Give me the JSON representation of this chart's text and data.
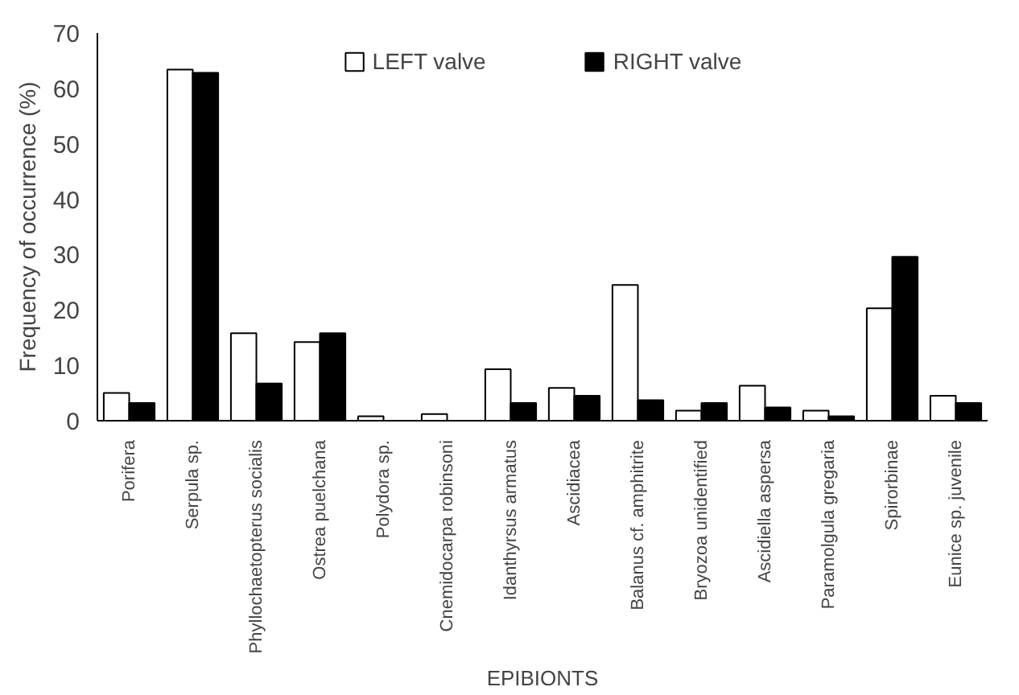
{
  "chart_data": {
    "type": "bar",
    "xlabel": "EPIBIONTS",
    "ylabel": "Frequency of occurrence (%)",
    "categories": [
      "Porifera",
      "Serpula sp.",
      "Phyllochaetopterus socialis",
      "Ostrea puelchana",
      "Polydora sp.",
      "Cnemidocarpa robinsoni",
      "Idanthyrsus armatus",
      "Ascidiacea",
      "Balanus cf. amphitrite",
      "Bryozoa unidentified",
      "Ascidiella aspersa",
      "Paramolgula gregaria",
      "Spirorbinae",
      "Eunice sp. juvenile"
    ],
    "series": [
      {
        "name": "LEFT valve",
        "color": "#ffffff",
        "values": [
          5.0,
          63.4,
          15.8,
          14.2,
          0.8,
          1.2,
          9.3,
          5.9,
          24.5,
          1.8,
          6.3,
          1.8,
          20.3,
          4.5
        ]
      },
      {
        "name": "RIGHT valve",
        "color": "#000000",
        "values": [
          3.2,
          62.8,
          6.7,
          15.8,
          0,
          0,
          3.2,
          4.5,
          3.7,
          3.2,
          2.4,
          0.8,
          29.6,
          3.2
        ]
      }
    ],
    "ylim": [
      0,
      70
    ],
    "yticks": [
      0,
      10,
      20,
      30,
      40,
      50,
      60,
      70
    ],
    "grid": false,
    "legend": "top"
  }
}
